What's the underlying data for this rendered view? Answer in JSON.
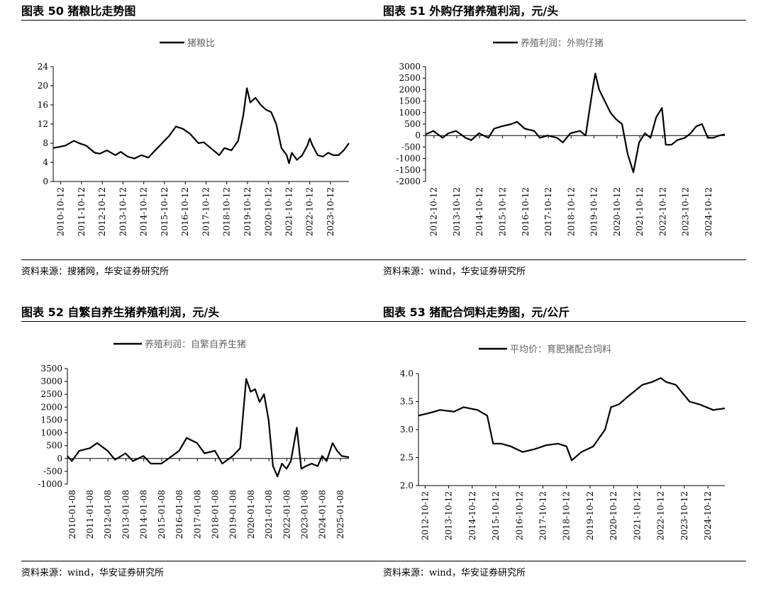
{
  "panels": [
    {
      "title": "图表 50 猪粮比走势图",
      "source": "资料来源：搜猪网，华安证券研究所",
      "chart_data": {
        "type": "line",
        "legend": [
          "猪粮比"
        ],
        "legend_position": "top-center",
        "ylim": [
          0,
          24
        ],
        "yticks": [
          0,
          4,
          8,
          12,
          16,
          20,
          24
        ],
        "xlim": [
          "2010-06-01",
          "2024-09-01"
        ],
        "xticks": [
          "2010-10-12",
          "2011-10-12",
          "2012-10-12",
          "2013-10-12",
          "2014-10-12",
          "2015-10-12",
          "2016-10-12",
          "2017-10-12",
          "2018-10-12",
          "2019-10-12",
          "2020-10-12",
          "2021-10-12",
          "2022-10-12",
          "2023-10-12"
        ],
        "grid": false,
        "series": [
          {
            "name": "猪粮比",
            "x": [
              "2010-06-01",
              "2010-09-01",
              "2011-01-01",
              "2011-06-01",
              "2011-09-01",
              "2012-01-01",
              "2012-06-01",
              "2012-09-01",
              "2013-01-01",
              "2013-06-01",
              "2013-09-01",
              "2014-01-01",
              "2014-05-01",
              "2014-09-01",
              "2015-01-01",
              "2015-05-01",
              "2015-09-01",
              "2016-01-01",
              "2016-05-01",
              "2016-09-01",
              "2017-01-01",
              "2017-06-01",
              "2017-09-01",
              "2018-01-01",
              "2018-06-01",
              "2018-09-01",
              "2019-01-01",
              "2019-05-01",
              "2019-08-01",
              "2019-10-01",
              "2019-12-01",
              "2020-03-01",
              "2020-06-01",
              "2020-09-01",
              "2020-12-01",
              "2021-03-01",
              "2021-06-01",
              "2021-09-01",
              "2021-10-12",
              "2021-12-01",
              "2022-03-01",
              "2022-06-01",
              "2022-09-01",
              "2022-10-12",
              "2022-12-01",
              "2023-03-01",
              "2023-06-01",
              "2023-09-01",
              "2023-12-01",
              "2024-03-01",
              "2024-06-01",
              "2024-09-01"
            ],
            "y": [
              7.0,
              7.2,
              7.5,
              8.5,
              8.0,
              7.5,
              6.0,
              5.8,
              6.5,
              5.5,
              6.2,
              5.2,
              4.8,
              5.5,
              5.0,
              6.5,
              8.0,
              9.5,
              11.5,
              11.0,
              10.0,
              8.0,
              8.2,
              7.0,
              5.5,
              7.0,
              6.5,
              8.5,
              14.0,
              19.5,
              16.5,
              17.5,
              16.0,
              15.0,
              14.5,
              12.0,
              7.0,
              5.5,
              3.8,
              6.0,
              4.5,
              5.5,
              7.5,
              9.0,
              7.5,
              5.5,
              5.2,
              6.0,
              5.5,
              5.5,
              6.5,
              8.0
            ]
          }
        ]
      }
    },
    {
      "title": "图表 51 外购仔猪养殖利润，元/头",
      "source": "资料来源：wind，华安证券研究所",
      "chart_data": {
        "type": "line",
        "legend": [
          "养殖利润：外购仔猪"
        ],
        "legend_position": "top-center",
        "ylim": [
          -2000,
          3000
        ],
        "yticks": [
          -2000,
          -1500,
          -1000,
          -500,
          0,
          500,
          1000,
          1500,
          2000,
          2500,
          3000
        ],
        "xlim": [
          "2012-06-01",
          "2025-07-01"
        ],
        "xticks": [
          "2012-10-12",
          "2013-10-12",
          "2014-10-12",
          "2015-10-12",
          "2016-10-12",
          "2017-10-12",
          "2018-10-12",
          "2019-10-12",
          "2020-10-12",
          "2021-10-12",
          "2022-10-12",
          "2023-10-12",
          "2024-10-12"
        ],
        "grid": false,
        "series": [
          {
            "name": "养殖利润：外购仔猪",
            "x": [
              "2012-06-01",
              "2012-10-01",
              "2013-03-01",
              "2013-06-01",
              "2013-10-01",
              "2014-03-01",
              "2014-06-01",
              "2014-10-01",
              "2015-03-01",
              "2015-06-01",
              "2015-10-01",
              "2016-03-01",
              "2016-06-01",
              "2016-10-01",
              "2017-03-01",
              "2017-06-01",
              "2017-10-01",
              "2018-03-01",
              "2018-06-01",
              "2018-10-01",
              "2019-03-01",
              "2019-06-01",
              "2019-10-01",
              "2019-11-01",
              "2020-01-01",
              "2020-04-01",
              "2020-07-01",
              "2020-10-01",
              "2021-01-01",
              "2021-04-01",
              "2021-07-01",
              "2021-10-01",
              "2022-01-01",
              "2022-04-01",
              "2022-07-01",
              "2022-10-01",
              "2022-12-01",
              "2023-03-01",
              "2023-06-01",
              "2023-10-01",
              "2024-01-01",
              "2024-04-01",
              "2024-07-01",
              "2024-10-01",
              "2025-01-01",
              "2025-04-01",
              "2025-07-01"
            ],
            "y": [
              50,
              200,
              -100,
              100,
              200,
              -100,
              -200,
              100,
              -100,
              300,
              400,
              500,
              600,
              300,
              200,
              -100,
              0,
              -100,
              -300,
              100,
              200,
              0,
              2200,
              2700,
              2000,
              1500,
              1000,
              700,
              500,
              -800,
              -1600,
              -300,
              100,
              -100,
              800,
              1200,
              -400,
              -400,
              -200,
              -100,
              100,
              400,
              500,
              -100,
              -100,
              0,
              50
            ]
          }
        ]
      }
    },
    {
      "title": "图表 52 自繁自养生猪养殖利润，元/头",
      "source": "资料来源：wind，华安证券研究所",
      "chart_data": {
        "type": "line",
        "legend": [
          "养殖利润：自繁自养生猪"
        ],
        "legend_position": "top-center",
        "ylim": [
          -1000,
          3500
        ],
        "yticks": [
          -1000,
          -500,
          0,
          500,
          1000,
          1500,
          2000,
          2500,
          3000,
          3500
        ],
        "xlim": [
          "2009-10-01",
          "2025-07-01"
        ],
        "xticks": [
          "2010-01-08",
          "2011-01-08",
          "2012-01-08",
          "2013-01-08",
          "2014-01-08",
          "2015-01-08",
          "2016-01-08",
          "2017-01-08",
          "2018-01-08",
          "2019-01-08",
          "2020-01-08",
          "2021-01-08",
          "2022-01-08",
          "2023-01-08",
          "2024-01-08",
          "2025-01-08"
        ],
        "grid": false,
        "series": [
          {
            "name": "养殖利润：自繁自养生猪",
            "x": [
              "2009-10-01",
              "2010-01-01",
              "2010-06-01",
              "2011-01-01",
              "2011-06-01",
              "2012-01-01",
              "2012-06-01",
              "2013-01-01",
              "2013-06-01",
              "2014-01-01",
              "2014-06-01",
              "2015-01-01",
              "2015-06-01",
              "2016-01-01",
              "2016-06-01",
              "2017-01-01",
              "2017-06-01",
              "2018-01-01",
              "2018-06-01",
              "2019-01-01",
              "2019-06-01",
              "2019-10-01",
              "2020-01-01",
              "2020-04-01",
              "2020-07-01",
              "2020-10-01",
              "2021-01-01",
              "2021-04-01",
              "2021-07-01",
              "2021-10-01",
              "2022-01-01",
              "2022-04-01",
              "2022-08-01",
              "2022-11-01",
              "2023-02-01",
              "2023-06-01",
              "2023-10-01",
              "2024-01-01",
              "2024-04-01",
              "2024-08-01",
              "2024-11-01",
              "2025-02-01",
              "2025-07-01"
            ],
            "y": [
              100,
              -100,
              300,
              400,
              600,
              300,
              -50,
              200,
              -100,
              100,
              -200,
              -200,
              0,
              300,
              800,
              600,
              200,
              300,
              -200,
              100,
              400,
              3100,
              2600,
              2700,
              2200,
              2500,
              1500,
              -300,
              -700,
              -200,
              -400,
              -100,
              1200,
              -400,
              -300,
              -200,
              -300,
              100,
              -100,
              600,
              300,
              100,
              50
            ]
          }
        ]
      }
    },
    {
      "title": "图表 53 猪配合饲料走势图，元/公斤",
      "source": "资料来源：wind，华安证券研究所",
      "chart_data": {
        "type": "line",
        "legend": [
          "平均价：育肥猪配合饲料"
        ],
        "legend_position": "top-center",
        "ylim": [
          2.0,
          4.0
        ],
        "yticks": [
          "2.0",
          "2.5",
          "3.0",
          "3.5",
          "4.0"
        ],
        "xlim": [
          "2012-07-01",
          "2025-07-01"
        ],
        "xticks": [
          "2012-10-12",
          "2013-10-12",
          "2014-10-12",
          "2015-10-12",
          "2016-10-12",
          "2017-10-12",
          "2018-10-12",
          "2019-10-12",
          "2020-10-12",
          "2021-10-12",
          "2022-10-12",
          "2023-10-12",
          "2024-10-12"
        ],
        "grid": false,
        "series": [
          {
            "name": "平均价：育肥猪配合饲料",
            "x": [
              "2012-07-01",
              "2013-01-01",
              "2013-06-01",
              "2014-01-01",
              "2014-06-01",
              "2015-01-01",
              "2015-06-01",
              "2015-09-01",
              "2016-01-01",
              "2016-06-01",
              "2016-12-01",
              "2017-06-01",
              "2017-12-01",
              "2018-06-01",
              "2018-10-12",
              "2019-01-01",
              "2019-06-01",
              "2019-12-01",
              "2020-03-01",
              "2020-06-01",
              "2020-09-01",
              "2021-01-01",
              "2021-06-01",
              "2022-01-01",
              "2022-06-01",
              "2022-10-12",
              "2023-01-01",
              "2023-06-01",
              "2024-01-01",
              "2024-06-01",
              "2025-01-01",
              "2025-07-01"
            ],
            "y": [
              3.25,
              3.3,
              3.35,
              3.32,
              3.4,
              3.35,
              3.25,
              2.75,
              2.75,
              2.7,
              2.6,
              2.65,
              2.72,
              2.75,
              2.7,
              2.45,
              2.6,
              2.7,
              2.85,
              3.0,
              3.4,
              3.45,
              3.6,
              3.8,
              3.85,
              3.92,
              3.85,
              3.8,
              3.5,
              3.45,
              3.35,
              3.38
            ]
          }
        ]
      }
    }
  ]
}
